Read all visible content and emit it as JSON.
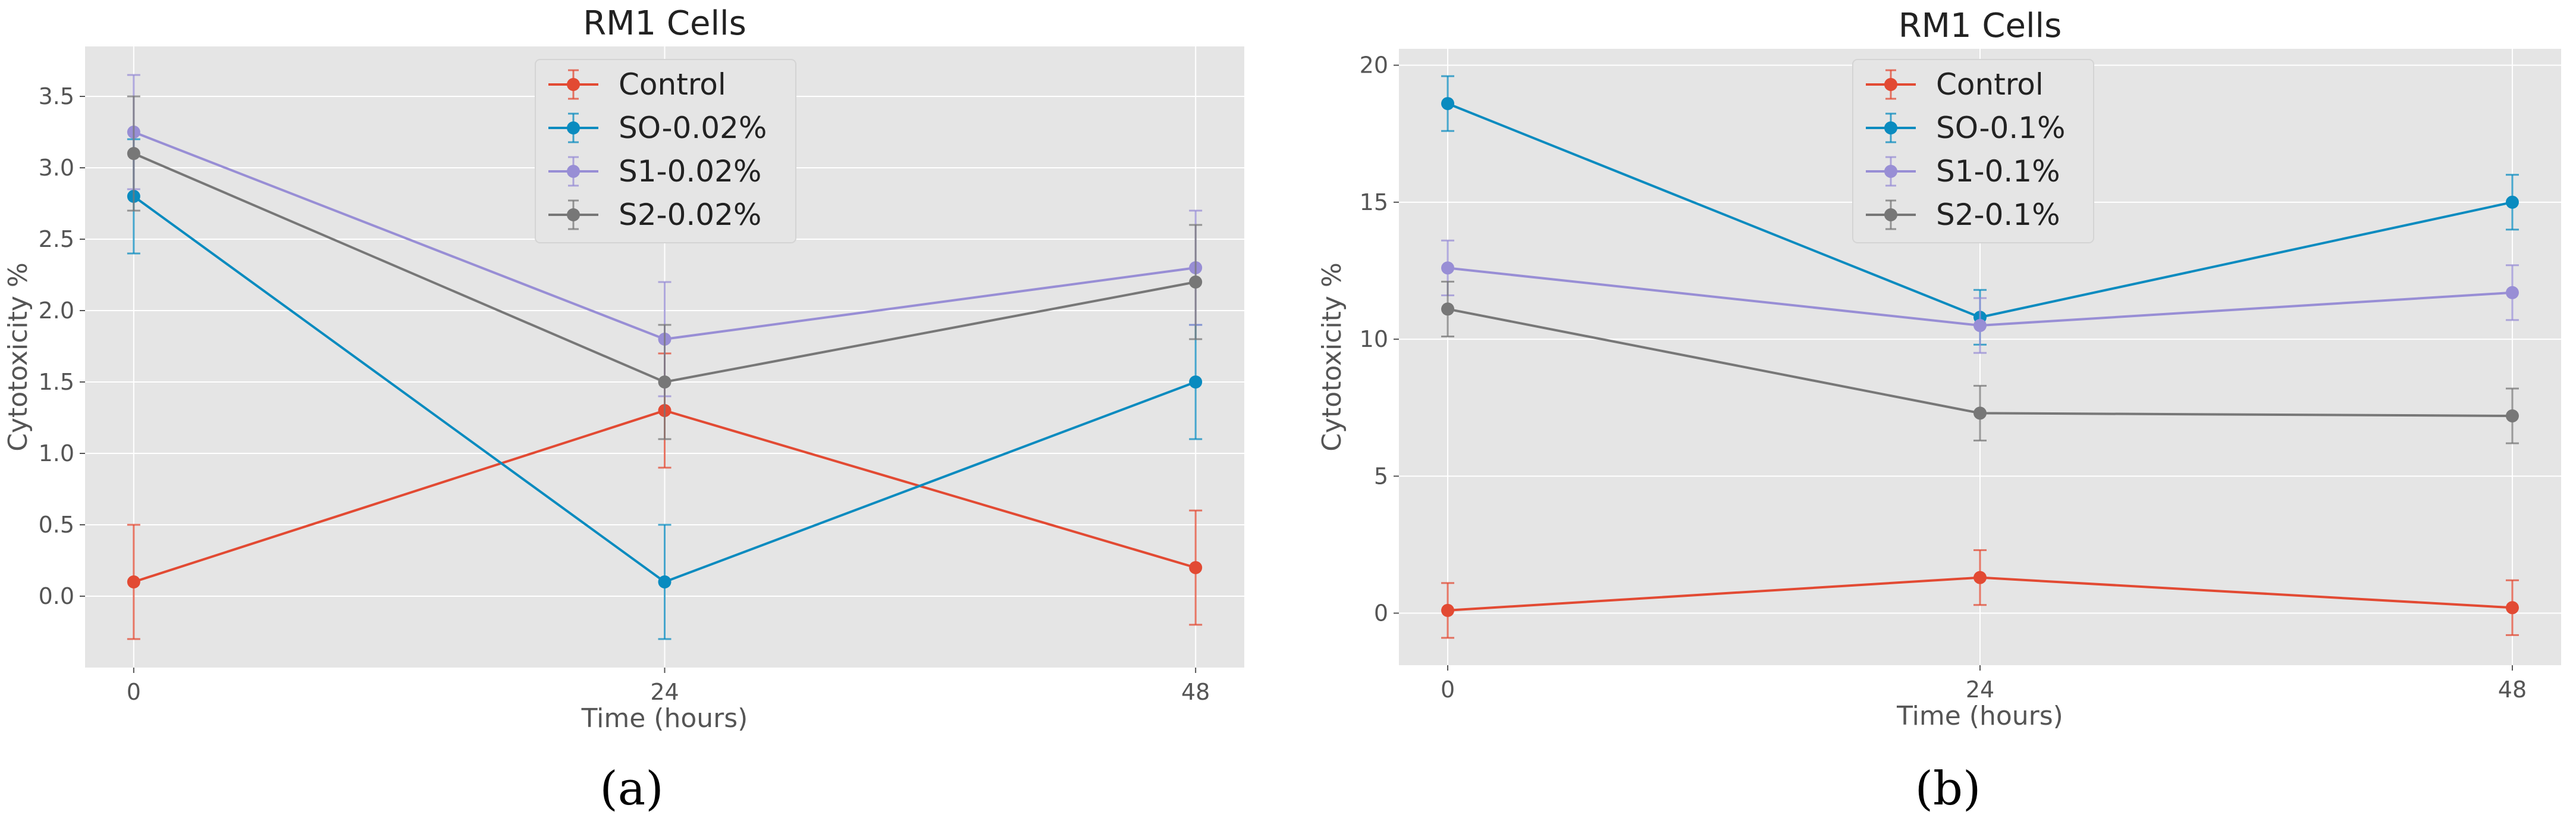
{
  "chart_data": [
    {
      "type": "line",
      "panel": "(a)",
      "title": "RM1 Cells",
      "xlabel": "Time (hours)",
      "ylabel": "Cytotoxicity %",
      "x": [
        0,
        24,
        48
      ],
      "xticks": [
        0,
        24,
        48
      ],
      "xtick_labels": [
        "0",
        "24",
        "48"
      ],
      "yticks": [
        0.0,
        0.5,
        1.0,
        1.5,
        2.0,
        2.5,
        3.0,
        3.5
      ],
      "ytick_labels": [
        "0.0",
        "0.5",
        "1.0",
        "1.5",
        "2.0",
        "2.5",
        "3.0",
        "3.5"
      ],
      "xlim": [
        -2.2,
        50.2
      ],
      "ylim": [
        -0.5,
        3.85
      ],
      "grid": true,
      "legend_position": "top-center",
      "series": [
        {
          "name": "Control",
          "color": "#E24A33",
          "values": [
            0.1,
            1.3,
            0.2
          ],
          "errors": [
            0.4,
            0.4,
            0.4
          ]
        },
        {
          "name": "SO-0.02%",
          "color": "#0A8BBF",
          "values": [
            2.8,
            0.1,
            1.5
          ],
          "errors": [
            0.4,
            0.4,
            0.4
          ]
        },
        {
          "name": "S1-0.02%",
          "color": "#988ED5",
          "values": [
            3.25,
            1.8,
            2.3
          ],
          "errors": [
            0.4,
            0.4,
            0.4
          ]
        },
        {
          "name": "S2-0.02%",
          "color": "#777777",
          "values": [
            3.1,
            1.5,
            2.2
          ],
          "errors": [
            0.4,
            0.4,
            0.4
          ]
        }
      ]
    },
    {
      "type": "line",
      "panel": "(b)",
      "title": "RM1 Cells",
      "xlabel": "Time (hours)",
      "ylabel": "Cytotoxicity %",
      "x": [
        0,
        24,
        48
      ],
      "xticks": [
        0,
        24,
        48
      ],
      "xtick_labels": [
        "0",
        "24",
        "48"
      ],
      "yticks": [
        0,
        5,
        10,
        15,
        20
      ],
      "ytick_labels": [
        "0",
        "5",
        "10",
        "15",
        "20"
      ],
      "xlim": [
        -2.2,
        50.2
      ],
      "ylim": [
        -1.9,
        20.6
      ],
      "grid": true,
      "legend_position": "top-center",
      "series": [
        {
          "name": "Control",
          "color": "#E24A33",
          "values": [
            0.1,
            1.3,
            0.2
          ],
          "errors": [
            1.0,
            1.0,
            1.0
          ]
        },
        {
          "name": "SO-0.1%",
          "color": "#0A8BBF",
          "values": [
            18.6,
            10.8,
            15.0
          ],
          "errors": [
            1.0,
            1.0,
            1.0
          ]
        },
        {
          "name": "S1-0.1%",
          "color": "#988ED5",
          "values": [
            12.6,
            10.5,
            11.7
          ],
          "errors": [
            1.0,
            1.0,
            1.0
          ]
        },
        {
          "name": "S2-0.1%",
          "color": "#777777",
          "values": [
            11.1,
            7.3,
            7.2
          ],
          "errors": [
            1.0,
            1.0,
            1.0
          ]
        }
      ]
    }
  ]
}
